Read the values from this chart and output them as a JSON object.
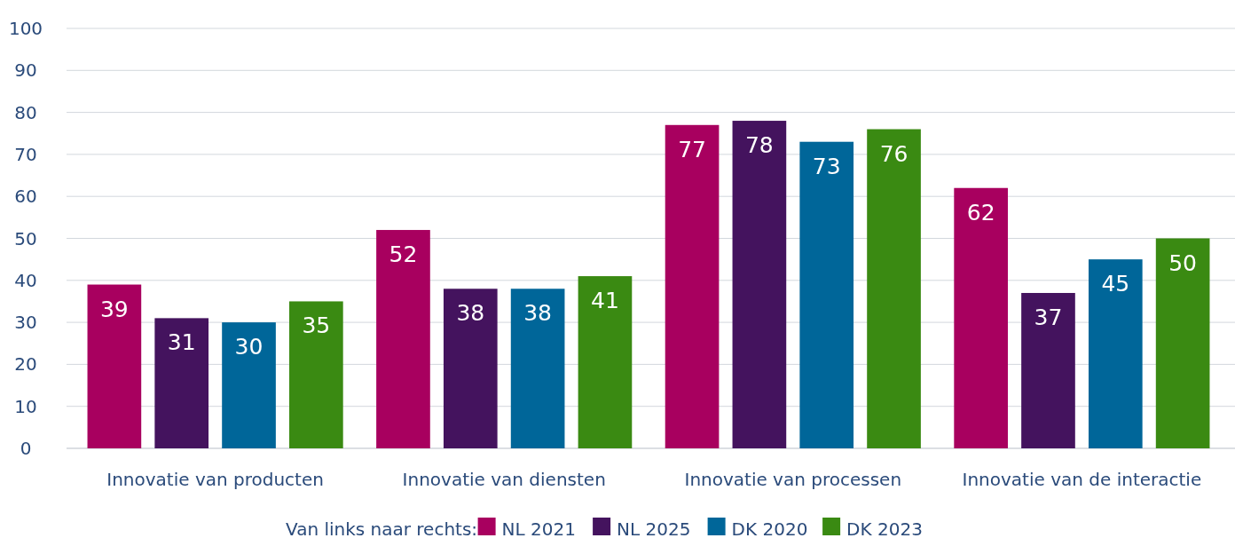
{
  "chart_data": {
    "type": "bar",
    "categories": [
      "Innovatie van producten",
      "Innovatie van diensten",
      "Innovatie van processen",
      "Innovatie van de interactie"
    ],
    "series": [
      {
        "name": "NL 2021",
        "color": "#a8005f",
        "values": [
          39,
          52,
          77,
          62
        ]
      },
      {
        "name": "NL 2025",
        "color": "#44135e",
        "values": [
          31,
          38,
          78,
          37
        ]
      },
      {
        "name": "DK 2020",
        "color": "#006699",
        "values": [
          30,
          38,
          73,
          45
        ]
      },
      {
        "name": "DK 2023",
        "color": "#3a8a12",
        "values": [
          35,
          41,
          76,
          50
        ]
      }
    ],
    "ylim": [
      0,
      100
    ],
    "yticks": [
      0,
      10,
      20,
      30,
      40,
      50,
      60,
      70,
      80,
      90,
      100
    ],
    "grid": "y",
    "legend": "bottom",
    "legend_title": "Van links naar rechts:",
    "data_labels": true
  }
}
